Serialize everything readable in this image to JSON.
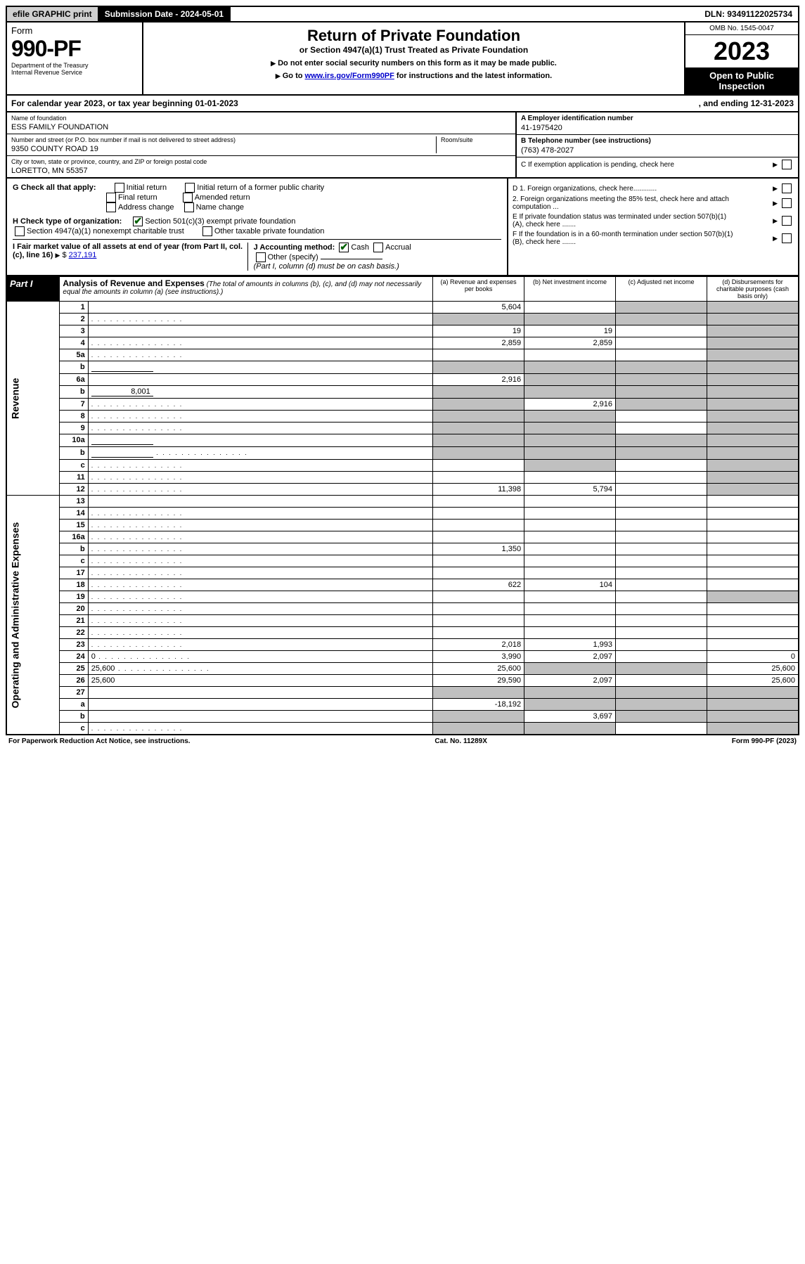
{
  "top": {
    "efile": "efile GRAPHIC print",
    "sub_label": "Submission Date - 2024-05-01",
    "dln": "DLN: 93491122025734"
  },
  "header": {
    "form_word": "Form",
    "form_num": "990-PF",
    "dept": "Department of the Treasury",
    "irs": "Internal Revenue Service",
    "title": "Return of Private Foundation",
    "subtitle": "or Section 4947(a)(1) Trust Treated as Private Foundation",
    "instr1": "Do not enter social security numbers on this form as it may be made public.",
    "instr2_pre": "Go to ",
    "instr2_link": "www.irs.gov/Form990PF",
    "instr2_post": " for instructions and the latest information.",
    "omb": "OMB No. 1545-0047",
    "year": "2023",
    "open": "Open to Public Inspection"
  },
  "cal": {
    "text": "For calendar year 2023, or tax year beginning 01-01-2023",
    "ending": ", and ending 12-31-2023"
  },
  "ident": {
    "name_label": "Name of foundation",
    "name": "ESS FAMILY FOUNDATION",
    "addr_label": "Number and street (or P.O. box number if mail is not delivered to street address)",
    "room_label": "Room/suite",
    "addr": "9350 COUNTY ROAD 19",
    "city_label": "City or town, state or province, country, and ZIP or foreign postal code",
    "city": "LORETTO, MN  55357",
    "A_label": "A Employer identification number",
    "A_val": "41-1975420",
    "B_label": "B Telephone number (see instructions)",
    "B_val": "(763) 478-2027",
    "C_label": "C If exemption application is pending, check here",
    "D1": "D 1. Foreign organizations, check here............",
    "D2": "2. Foreign organizations meeting the 85% test, check here and attach computation ...",
    "E": "E  If private foundation status was terminated under section 507(b)(1)(A), check here .......",
    "F": "F  If the foundation is in a 60-month termination under section 507(b)(1)(B), check here .......",
    "G": "G Check all that apply:",
    "G_opts": [
      "Initial return",
      "Final return",
      "Address change",
      "Initial return of a former public charity",
      "Amended return",
      "Name change"
    ],
    "H": "H Check type of organization:",
    "H1": "Section 501(c)(3) exempt private foundation",
    "H2": "Section 4947(a)(1) nonexempt charitable trust",
    "H3": "Other taxable private foundation",
    "I": "I Fair market value of all assets at end of year (from Part II, col. (c), line 16)",
    "I_val": "237,191",
    "J": "J Accounting method:",
    "J_cash": "Cash",
    "J_accrual": "Accrual",
    "J_other": "Other (specify)",
    "J_note": "(Part I, column (d) must be on cash basis.)"
  },
  "part1": {
    "label": "Part I",
    "title": "Analysis of Revenue and Expenses",
    "note": " (The total of amounts in columns (b), (c), and (d) may not necessarily equal the amounts in column (a) (see instructions).)",
    "col_a": "(a)   Revenue and expenses per books",
    "col_b": "(b)   Net investment income",
    "col_c": "(c)   Adjusted net income",
    "col_d": "(d)   Disbursements for charitable purposes (cash basis only)",
    "rev_label": "Revenue",
    "exp_label": "Operating and Administrative Expenses"
  },
  "rows": [
    {
      "n": "1",
      "d": "",
      "a": "5,604",
      "b": "",
      "c": "",
      "c_shade": true,
      "d_shade": true
    },
    {
      "n": "2",
      "d": "",
      "dots": true,
      "a": "",
      "b": "",
      "c": "",
      "a_shade": true,
      "b_shade": true,
      "c_shade": true,
      "d_shade": true
    },
    {
      "n": "3",
      "d": "",
      "a": "19",
      "b": "19",
      "c": "",
      "d_shade": true
    },
    {
      "n": "4",
      "d": "",
      "dots": true,
      "a": "2,859",
      "b": "2,859",
      "c": "",
      "d_shade": true
    },
    {
      "n": "5a",
      "d": "",
      "dots": true,
      "a": "",
      "b": "",
      "c": "",
      "d_shade": true
    },
    {
      "n": "b",
      "d": "",
      "inline": true,
      "a": "",
      "b": "",
      "c": "",
      "a_shade": true,
      "b_shade": true,
      "c_shade": true,
      "d_shade": true
    },
    {
      "n": "6a",
      "d": "",
      "a": "2,916",
      "b": "",
      "c": "",
      "b_shade": true,
      "c_shade": true,
      "d_shade": true
    },
    {
      "n": "b",
      "d": "",
      "inline_val": "8,001",
      "a": "",
      "b": "",
      "c": "",
      "a_shade": true,
      "b_shade": true,
      "c_shade": true,
      "d_shade": true
    },
    {
      "n": "7",
      "d": "",
      "dots": true,
      "a": "",
      "b": "2,916",
      "c": "",
      "a_shade": true,
      "c_shade": true,
      "d_shade": true
    },
    {
      "n": "8",
      "d": "",
      "dots": true,
      "a": "",
      "b": "",
      "c": "",
      "a_shade": true,
      "b_shade": true,
      "d_shade": true
    },
    {
      "n": "9",
      "d": "",
      "dots": true,
      "a": "",
      "b": "",
      "c": "",
      "a_shade": true,
      "b_shade": true,
      "d_shade": true
    },
    {
      "n": "10a",
      "d": "",
      "inline": true,
      "a": "",
      "b": "",
      "c": "",
      "a_shade": true,
      "b_shade": true,
      "c_shade": true,
      "d_shade": true
    },
    {
      "n": "b",
      "d": "",
      "dots": true,
      "inline": true,
      "a": "",
      "b": "",
      "c": "",
      "a_shade": true,
      "b_shade": true,
      "c_shade": true,
      "d_shade": true
    },
    {
      "n": "c",
      "d": "",
      "dots": true,
      "a": "",
      "b": "",
      "c": "",
      "b_shade": true,
      "d_shade": true
    },
    {
      "n": "11",
      "d": "",
      "dots": true,
      "a": "",
      "b": "",
      "c": "",
      "d_shade": true
    },
    {
      "n": "12",
      "d": "",
      "dots": true,
      "a": "11,398",
      "b": "5,794",
      "c": "",
      "d_shade": true
    }
  ],
  "exp_rows": [
    {
      "n": "13",
      "d": "",
      "a": "",
      "b": "",
      "c": ""
    },
    {
      "n": "14",
      "d": "",
      "dots": true,
      "a": "",
      "b": "",
      "c": ""
    },
    {
      "n": "15",
      "d": "",
      "dots": true,
      "a": "",
      "b": "",
      "c": ""
    },
    {
      "n": "16a",
      "d": "",
      "dots": true,
      "a": "",
      "b": "",
      "c": ""
    },
    {
      "n": "b",
      "d": "",
      "dots": true,
      "a": "1,350",
      "b": "",
      "c": ""
    },
    {
      "n": "c",
      "d": "",
      "dots": true,
      "a": "",
      "b": "",
      "c": ""
    },
    {
      "n": "17",
      "d": "",
      "dots": true,
      "a": "",
      "b": "",
      "c": ""
    },
    {
      "n": "18",
      "d": "",
      "dots": true,
      "a": "622",
      "b": "104",
      "c": ""
    },
    {
      "n": "19",
      "d": "",
      "dots": true,
      "a": "",
      "b": "",
      "c": "",
      "d_shade": true
    },
    {
      "n": "20",
      "d": "",
      "dots": true,
      "a": "",
      "b": "",
      "c": ""
    },
    {
      "n": "21",
      "d": "",
      "dots": true,
      "a": "",
      "b": "",
      "c": ""
    },
    {
      "n": "22",
      "d": "",
      "dots": true,
      "a": "",
      "b": "",
      "c": ""
    },
    {
      "n": "23",
      "d": "",
      "dots": true,
      "a": "2,018",
      "b": "1,993",
      "c": ""
    },
    {
      "n": "24",
      "d": "0",
      "dots": true,
      "a": "3,990",
      "b": "2,097",
      "c": ""
    },
    {
      "n": "25",
      "d": "25,600",
      "dots": true,
      "a": "25,600",
      "b": "",
      "c": "",
      "b_shade": true,
      "c_shade": true
    },
    {
      "n": "26",
      "d": "25,600",
      "a": "29,590",
      "b": "2,097",
      "c": ""
    },
    {
      "n": "27",
      "d": "",
      "a": "",
      "b": "",
      "c": "",
      "a_shade": true,
      "b_shade": true,
      "c_shade": true,
      "d_shade": true
    },
    {
      "n": "a",
      "d": "",
      "a": "-18,192",
      "b": "",
      "c": "",
      "b_shade": true,
      "c_shade": true,
      "d_shade": true
    },
    {
      "n": "b",
      "d": "",
      "a": "",
      "b": "3,697",
      "c": "",
      "a_shade": true,
      "c_shade": true,
      "d_shade": true
    },
    {
      "n": "c",
      "d": "",
      "dots": true,
      "a": "",
      "b": "",
      "c": "",
      "a_shade": true,
      "b_shade": true,
      "d_shade": true
    }
  ],
  "footer": {
    "left": "For Paperwork Reduction Act Notice, see instructions.",
    "mid": "Cat. No. 11289X",
    "right": "Form 990-PF (2023)"
  }
}
